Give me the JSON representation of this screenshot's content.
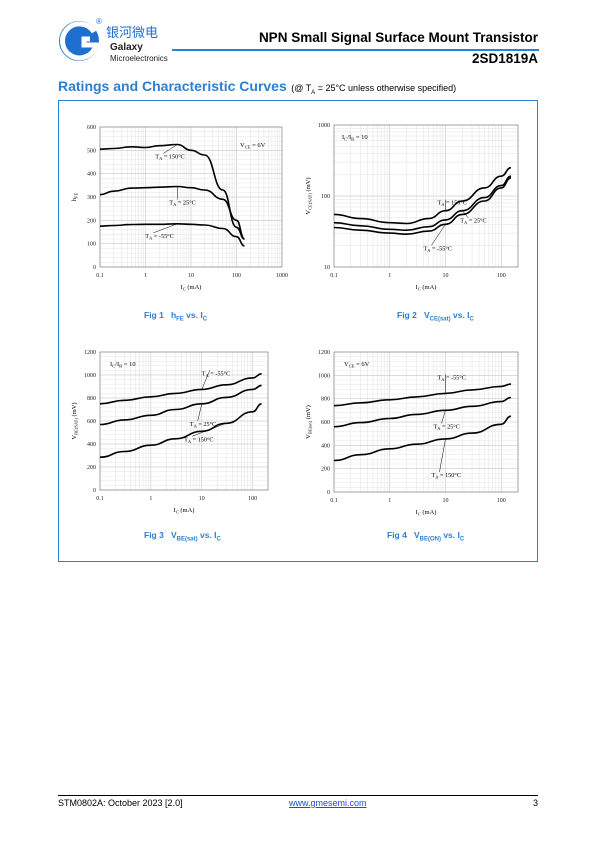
{
  "header": {
    "company_cn": "银河微电",
    "company_line1": "Galaxy",
    "company_line2": "Microelectronics",
    "registered": "®",
    "title": "NPN Small Signal Surface Mount Transistor",
    "part": "2SD1819A"
  },
  "section": {
    "title": "Ratings and Characteristic Curves",
    "cond_pre": "(@ T",
    "cond_sub": "A",
    "cond_post": " = 25°C unless otherwise specified)"
  },
  "captions": [
    {
      "fig": "Fig 1",
      "main": "h",
      "sub": "FE",
      "tail": " vs. I",
      "tail_sub": "C"
    },
    {
      "fig": "Fig 2",
      "main": "V",
      "sub": "CE(sat)",
      "tail": " vs. I",
      "tail_sub": "C"
    },
    {
      "fig": "Fig 3",
      "main": "V",
      "sub": "BE(sat)",
      "tail": " vs. I",
      "tail_sub": "C"
    },
    {
      "fig": "Fig 4",
      "main": "V",
      "sub": "BE(ON)",
      "tail": " vs. I",
      "tail_sub": "C"
    }
  ],
  "footer": {
    "doc": "STM0802A: October 2023 [2.0]",
    "url": "www.gmesemi.com",
    "page": "3"
  },
  "chart_data": [
    {
      "type": "line",
      "xscale": "log",
      "xlim": [
        0.1,
        1000
      ],
      "xticks": [
        "0.1",
        "1",
        "10",
        "100",
        "1000"
      ],
      "yscale": "linear",
      "ylim": [
        0,
        600
      ],
      "yticks": [
        "0",
        "100",
        "200",
        "300",
        "400",
        "500",
        "600"
      ],
      "xlabel": "I  (mA)",
      "xlabel_sub": "C",
      "ylabel": "h",
      "ylabel_sub": "FE",
      "condition": "V   = 6V",
      "condition_sub": "CE",
      "grid": true,
      "series": [
        {
          "name": "T  = 150°C",
          "x": [
            0.1,
            0.2,
            0.5,
            1,
            2,
            5,
            10,
            20,
            50,
            100,
            150
          ],
          "y": [
            505,
            508,
            515,
            512,
            520,
            525,
            500,
            480,
            330,
            170,
            120
          ]
        },
        {
          "name": "T  = 25°C",
          "x": [
            0.1,
            0.2,
            0.5,
            1,
            2,
            5,
            10,
            20,
            50,
            100,
            150
          ],
          "y": [
            310,
            325,
            338,
            340,
            342,
            345,
            340,
            330,
            290,
            200,
            120
          ]
        },
        {
          "name": "T  = -55°C",
          "x": [
            0.1,
            0.2,
            0.5,
            1,
            2,
            5,
            10,
            20,
            50,
            100,
            150
          ],
          "y": [
            175,
            178,
            182,
            183,
            183,
            185,
            183,
            180,
            165,
            130,
            90
          ]
        }
      ]
    },
    {
      "type": "line",
      "xscale": "log",
      "xlim": [
        0.1,
        200
      ],
      "xticks": [
        "0.1",
        "1",
        "10",
        "100"
      ],
      "yscale": "log",
      "ylim": [
        10,
        1000
      ],
      "yticks": [
        "10",
        "100",
        "1000"
      ],
      "xlabel": "I  (mA)",
      "xlabel_sub": "C",
      "ylabel": "V        (mV)",
      "ylabel_sub": "CE(SAT)",
      "condition": "I /I  = 10",
      "grid": true,
      "series": [
        {
          "name": "T  = 150°C",
          "x": [
            0.1,
            0.3,
            1,
            2,
            5,
            10,
            20,
            50,
            100,
            150
          ],
          "y": [
            55,
            48,
            42,
            41,
            48,
            62,
            85,
            130,
            190,
            250
          ]
        },
        {
          "name": "T  = 25°C",
          "x": [
            0.1,
            0.3,
            1,
            2,
            5,
            10,
            20,
            50,
            100,
            150
          ],
          "y": [
            42,
            38,
            34,
            33,
            37,
            46,
            62,
            95,
            140,
            190
          ]
        },
        {
          "name": "T  = -55°C",
          "x": [
            0.1,
            0.3,
            1,
            2,
            5,
            10,
            20,
            50,
            100,
            150
          ],
          "y": [
            36,
            33,
            30,
            29,
            32,
            40,
            55,
            85,
            130,
            180
          ]
        }
      ]
    },
    {
      "type": "line",
      "xscale": "log",
      "xlim": [
        0.1,
        200
      ],
      "xticks": [
        "0.1",
        "1",
        "10",
        "100"
      ],
      "yscale": "linear",
      "ylim": [
        0,
        1200
      ],
      "yticks": [
        "0",
        "200",
        "400",
        "600",
        "800",
        "1000",
        "1200"
      ],
      "xlabel": "I  (mA)",
      "xlabel_sub": "C",
      "ylabel": "V        (mV)",
      "ylabel_sub": "BE(SAT)",
      "condition": "I /I  = 10",
      "grid": true,
      "series": [
        {
          "name": "T  = -55°C",
          "x": [
            0.1,
            0.3,
            1,
            3,
            10,
            30,
            100,
            150
          ],
          "y": [
            750,
            780,
            810,
            840,
            875,
            915,
            975,
            1010
          ]
        },
        {
          "name": "T  = 25°C",
          "x": [
            0.1,
            0.3,
            1,
            3,
            10,
            30,
            100,
            150
          ],
          "y": [
            570,
            610,
            650,
            700,
            750,
            805,
            875,
            910
          ]
        },
        {
          "name": "T  = 150°C",
          "x": [
            0.1,
            0.3,
            1,
            3,
            10,
            30,
            100,
            150
          ],
          "y": [
            285,
            335,
            390,
            445,
            510,
            580,
            680,
            750
          ]
        }
      ]
    },
    {
      "type": "line",
      "xscale": "log",
      "xlim": [
        0.1,
        200
      ],
      "xticks": [
        "0.1",
        "1",
        "10",
        "100"
      ],
      "yscale": "linear",
      "ylim": [
        0,
        1200
      ],
      "yticks": [
        "0",
        "200",
        "400",
        "600",
        "800",
        "1000",
        "1200"
      ],
      "xlabel": "I  (mA)",
      "xlabel_sub": "C",
      "ylabel": "V       (mV)",
      "ylabel_sub": "BE(on)",
      "condition": "V   = 6V",
      "condition_sub": "CE",
      "grid": true,
      "series": [
        {
          "name": "T  = -55°C",
          "x": [
            0.1,
            0.3,
            1,
            3,
            10,
            30,
            100,
            150
          ],
          "y": [
            740,
            765,
            790,
            815,
            845,
            875,
            905,
            925
          ]
        },
        {
          "name": "T  = 25°C",
          "x": [
            0.1,
            0.3,
            1,
            3,
            10,
            30,
            100,
            150
          ],
          "y": [
            560,
            595,
            630,
            665,
            700,
            735,
            775,
            810
          ]
        },
        {
          "name": "T  = 150°C",
          "x": [
            0.1,
            0.3,
            1,
            3,
            10,
            30,
            100,
            150
          ],
          "y": [
            270,
            320,
            370,
            410,
            455,
            505,
            580,
            650
          ]
        }
      ]
    }
  ]
}
